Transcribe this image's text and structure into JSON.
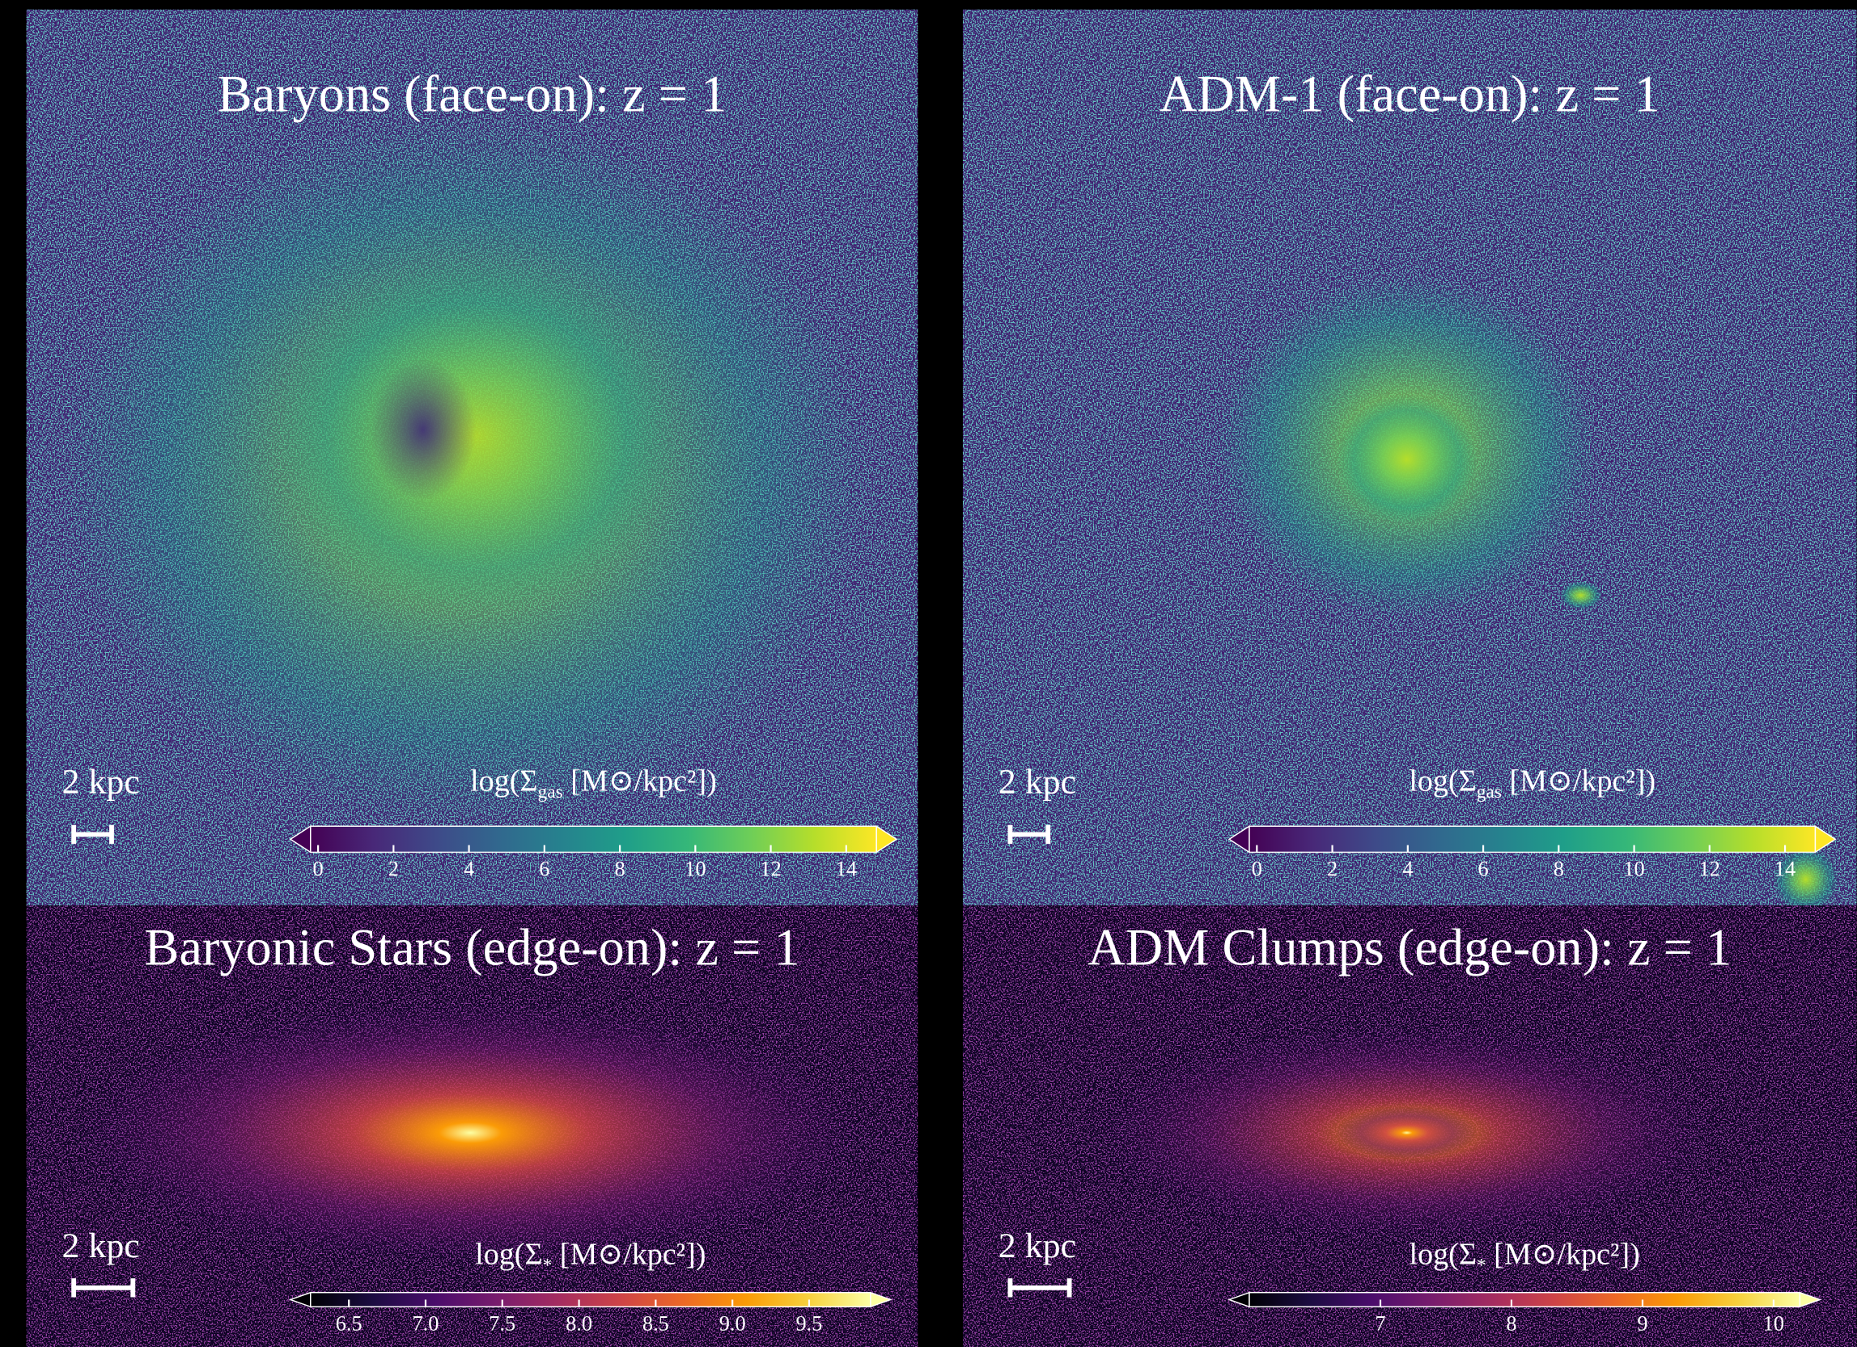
{
  "chart_data": [
    {
      "type": "image",
      "title": "Baryons (face-on): z = 1",
      "scale_label": "2 kpc",
      "colorbar": {
        "label": {
          "pre": "log(Σ",
          "sub": "gas",
          "post": " [M⊙/kpc²])"
        },
        "colormap": "viridis",
        "clim": [
          -0.2,
          14.8
        ],
        "ticks": [
          0,
          2,
          4,
          6,
          8,
          10,
          12,
          14
        ]
      }
    },
    {
      "type": "image",
      "title": "ADM-1 (face-on): z = 1",
      "scale_label": "2 kpc",
      "colorbar": {
        "label": {
          "pre": "log(Σ",
          "sub": "gas",
          "post": " [M⊙/kpc²])"
        },
        "colormap": "viridis",
        "clim": [
          -0.2,
          14.8
        ],
        "ticks": [
          0,
          2,
          4,
          6,
          8,
          10,
          12,
          14
        ]
      }
    },
    {
      "type": "image",
      "title": "Baryonic Stars (edge-on): z = 1",
      "scale_label": "2 kpc",
      "colorbar": {
        "label": {
          "pre": "log(Σ",
          "sub": "*",
          "post": " [M⊙/kpc²])"
        },
        "colormap": "inferno",
        "clim": [
          6.25,
          9.9
        ],
        "ticks": [
          6.5,
          {
            "value": 7,
            "label": "7.0"
          },
          7.5,
          {
            "value": 8,
            "label": "8.0"
          },
          8.5,
          {
            "value": 9,
            "label": "9.0"
          },
          9.5
        ]
      }
    },
    {
      "type": "image",
      "title": "ADM Clumps (edge-on): z = 1",
      "scale_label": "2 kpc",
      "colorbar": {
        "label": {
          "pre": "log(Σ",
          "sub": "*",
          "post": " [M⊙/kpc²])"
        },
        "colormap": "inferno",
        "clim": [
          6.0,
          10.2
        ],
        "ticks": [
          7,
          8,
          9,
          10
        ]
      }
    }
  ]
}
